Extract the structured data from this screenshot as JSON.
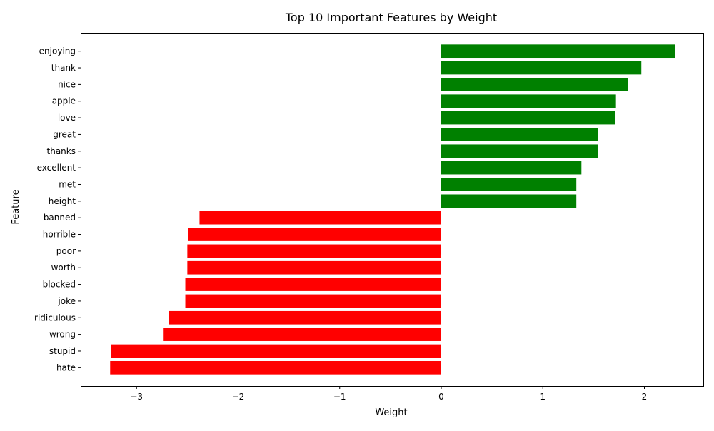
{
  "chart_data": {
    "type": "bar",
    "orientation": "horizontal",
    "title": "Top 10 Important Features by Weight",
    "xlabel": "Weight",
    "ylabel": "Feature",
    "xlim": [
      -3.55,
      2.58
    ],
    "xticks": [
      -3,
      -2,
      -1,
      0,
      1,
      2
    ],
    "xtick_labels": [
      "−3",
      "−2",
      "−1",
      "0",
      "1",
      "2"
    ],
    "grid": false,
    "legend": "none",
    "colors": {
      "positive": "#008000",
      "negative": "#ff0000"
    },
    "categories": [
      "enjoying",
      "thank",
      "nice",
      "apple",
      "love",
      "great",
      "thanks",
      "excellent",
      "met",
      "height",
      "banned",
      "horrible",
      "poor",
      "worth",
      "blocked",
      "joke",
      "ridiculous",
      "wrong",
      "stupid",
      "hate"
    ],
    "values": [
      2.3,
      1.97,
      1.84,
      1.72,
      1.71,
      1.54,
      1.54,
      1.38,
      1.33,
      1.33,
      -2.38,
      -2.49,
      -2.5,
      -2.5,
      -2.52,
      -2.52,
      -2.68,
      -2.74,
      -3.25,
      -3.26
    ]
  }
}
